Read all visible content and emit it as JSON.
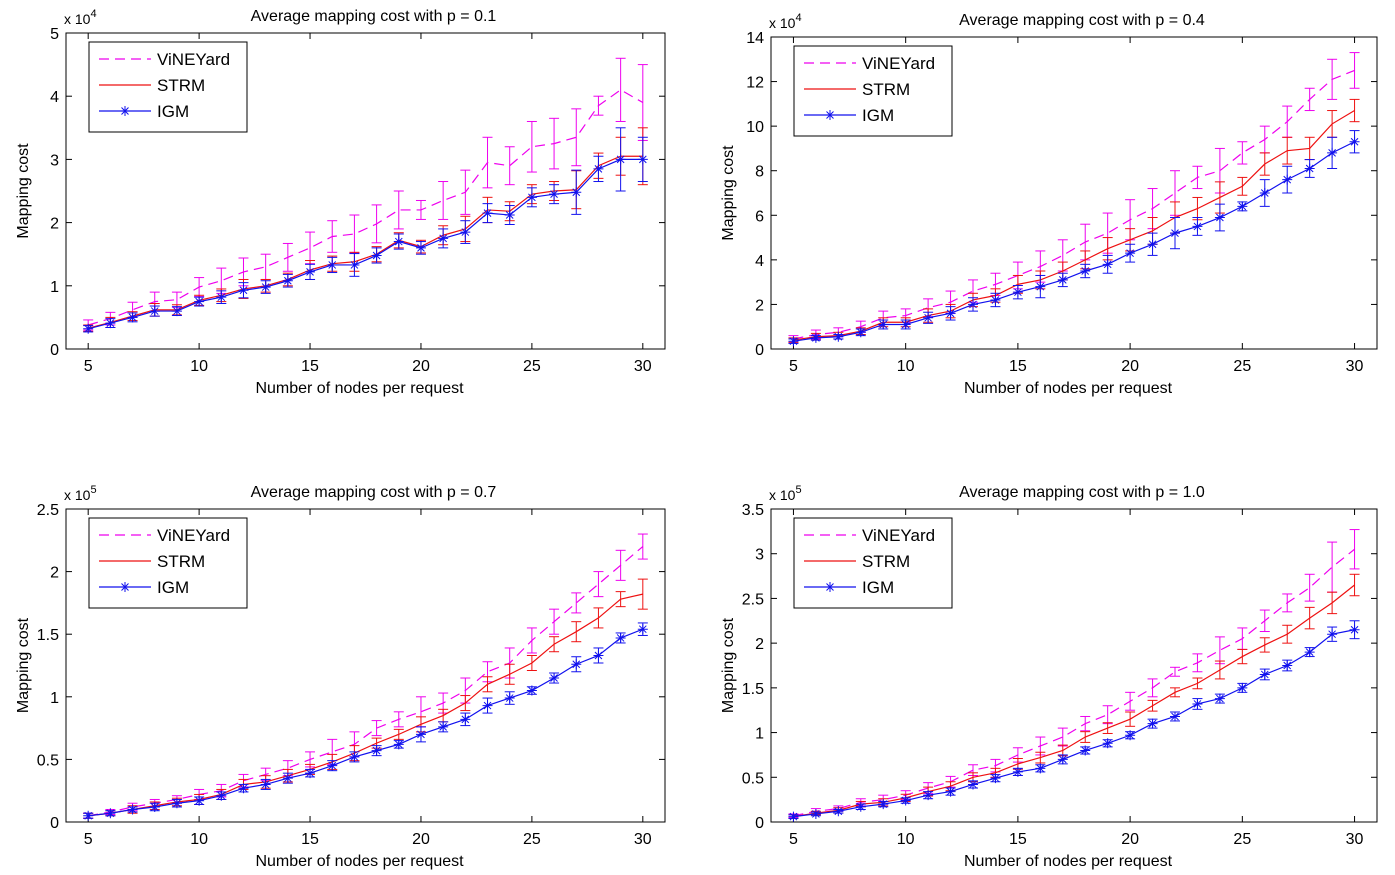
{
  "chart_data": [
    {
      "type": "line",
      "title": "Average mapping cost with p = 0.1",
      "xlabel": "Number of nodes per request",
      "ylabel": "Mapping cost",
      "exponent_label": "x 10",
      "exponent_power": "4",
      "x": [
        5,
        6,
        7,
        8,
        9,
        10,
        11,
        12,
        13,
        14,
        15,
        16,
        17,
        18,
        19,
        20,
        21,
        22,
        23,
        24,
        25,
        26,
        27,
        28,
        29,
        30
      ],
      "xlim": [
        4,
        31
      ],
      "ylim": [
        0,
        5
      ],
      "xticks": [
        5,
        10,
        15,
        20,
        25,
        30
      ],
      "yticks": [
        0,
        1,
        2,
        3,
        4,
        5
      ],
      "legend_position": "top-left",
      "series": [
        {
          "name": "ViNEYard",
          "color": "#ee00ee",
          "style": "dashed",
          "values": [
            0.38,
            0.48,
            0.62,
            0.75,
            0.78,
            0.98,
            1.08,
            1.22,
            1.3,
            1.45,
            1.6,
            1.78,
            1.82,
            1.98,
            2.2,
            2.2,
            2.35,
            2.48,
            2.95,
            2.9,
            3.2,
            3.25,
            3.35,
            3.85,
            4.1,
            3.9
          ],
          "err": [
            0.08,
            0.1,
            0.12,
            0.15,
            0.12,
            0.15,
            0.2,
            0.22,
            0.2,
            0.22,
            0.25,
            0.25,
            0.3,
            0.3,
            0.3,
            0.15,
            0.3,
            0.35,
            0.4,
            0.3,
            0.4,
            0.4,
            0.45,
            0.15,
            0.5,
            0.6
          ]
        },
        {
          "name": "STRM",
          "color": "#ee1111",
          "style": "solid",
          "values": [
            0.33,
            0.42,
            0.52,
            0.62,
            0.62,
            0.77,
            0.85,
            0.95,
            1.0,
            1.1,
            1.25,
            1.35,
            1.38,
            1.5,
            1.72,
            1.62,
            1.8,
            1.9,
            2.2,
            2.18,
            2.45,
            2.5,
            2.52,
            2.9,
            3.05,
            3.05
          ],
          "err": [
            0.05,
            0.08,
            0.07,
            0.1,
            0.08,
            0.08,
            0.1,
            0.15,
            0.1,
            0.1,
            0.15,
            0.12,
            0.15,
            0.12,
            0.12,
            0.1,
            0.15,
            0.2,
            0.2,
            0.15,
            0.15,
            0.15,
            0.3,
            0.2,
            0.3,
            0.45
          ]
        },
        {
          "name": "IGM",
          "color": "#1111ee",
          "style": "solid-star",
          "values": [
            0.32,
            0.41,
            0.5,
            0.6,
            0.6,
            0.75,
            0.82,
            0.93,
            0.98,
            1.08,
            1.22,
            1.33,
            1.33,
            1.48,
            1.7,
            1.6,
            1.75,
            1.85,
            2.15,
            2.12,
            2.4,
            2.45,
            2.48,
            2.85,
            3.0,
            3.0
          ],
          "err": [
            0.05,
            0.07,
            0.07,
            0.08,
            0.07,
            0.07,
            0.1,
            0.12,
            0.1,
            0.1,
            0.12,
            0.12,
            0.18,
            0.12,
            0.12,
            0.1,
            0.15,
            0.18,
            0.15,
            0.15,
            0.15,
            0.15,
            0.35,
            0.2,
            0.5,
            0.35
          ]
        }
      ]
    },
    {
      "type": "line",
      "title": "Average mapping cost with p = 0.4",
      "xlabel": "Number of nodes per request",
      "ylabel": "Mapping cost",
      "exponent_label": "x 10",
      "exponent_power": "4",
      "x": [
        5,
        6,
        7,
        8,
        9,
        10,
        11,
        12,
        13,
        14,
        15,
        16,
        17,
        18,
        19,
        20,
        21,
        22,
        23,
        24,
        25,
        26,
        27,
        28,
        29,
        30
      ],
      "xlim": [
        4,
        31
      ],
      "ylim": [
        0,
        14
      ],
      "xticks": [
        5,
        10,
        15,
        20,
        25,
        30
      ],
      "yticks": [
        0,
        2,
        4,
        6,
        8,
        10,
        12,
        14
      ],
      "legend_position": "top-left",
      "series": [
        {
          "name": "ViNEYard",
          "color": "#ee00ee",
          "style": "dashed",
          "values": [
            0.45,
            0.65,
            0.75,
            1.0,
            1.4,
            1.5,
            1.85,
            2.1,
            2.6,
            2.9,
            3.3,
            3.7,
            4.2,
            4.8,
            5.2,
            5.8,
            6.3,
            7.0,
            7.7,
            8.0,
            8.8,
            9.4,
            10.2,
            11.2,
            12.1,
            12.5
          ],
          "err": [
            0.15,
            0.2,
            0.2,
            0.25,
            0.3,
            0.3,
            0.4,
            0.5,
            0.5,
            0.5,
            0.6,
            0.7,
            0.7,
            0.8,
            0.9,
            0.9,
            0.9,
            1.0,
            0.5,
            1.0,
            0.5,
            0.6,
            0.7,
            0.5,
            0.9,
            0.8
          ]
        },
        {
          "name": "STRM",
          "color": "#ee1111",
          "style": "solid",
          "values": [
            0.4,
            0.55,
            0.6,
            0.8,
            1.2,
            1.2,
            1.5,
            1.7,
            2.2,
            2.4,
            2.9,
            3.1,
            3.5,
            4.0,
            4.5,
            4.9,
            5.3,
            5.9,
            6.3,
            6.8,
            7.3,
            8.3,
            8.9,
            9.0,
            10.1,
            10.7
          ],
          "err": [
            0.1,
            0.15,
            0.15,
            0.15,
            0.2,
            0.2,
            0.3,
            0.3,
            0.3,
            0.3,
            0.4,
            0.4,
            0.4,
            0.4,
            0.5,
            0.5,
            0.6,
            0.7,
            0.5,
            0.7,
            0.4,
            0.5,
            0.6,
            0.5,
            0.6,
            0.5
          ]
        },
        {
          "name": "IGM",
          "color": "#1111ee",
          "style": "solid-star",
          "values": [
            0.35,
            0.5,
            0.55,
            0.75,
            1.1,
            1.1,
            1.4,
            1.6,
            2.0,
            2.2,
            2.55,
            2.8,
            3.1,
            3.5,
            3.8,
            4.3,
            4.7,
            5.2,
            5.5,
            5.9,
            6.4,
            7.0,
            7.6,
            8.1,
            8.8,
            9.3
          ],
          "err": [
            0.1,
            0.1,
            0.1,
            0.15,
            0.2,
            0.2,
            0.25,
            0.3,
            0.3,
            0.3,
            0.3,
            0.5,
            0.3,
            0.3,
            0.4,
            0.4,
            0.5,
            0.7,
            0.4,
            0.6,
            0.2,
            0.6,
            0.6,
            0.4,
            0.7,
            0.5
          ]
        }
      ]
    },
    {
      "type": "line",
      "title": "Average mapping cost with p = 0.7",
      "xlabel": "Number of nodes per request",
      "ylabel": "Mapping cost",
      "exponent_label": "x 10",
      "exponent_power": "5",
      "x": [
        5,
        6,
        7,
        8,
        9,
        10,
        11,
        12,
        13,
        14,
        15,
        16,
        17,
        18,
        19,
        20,
        21,
        22,
        23,
        24,
        25,
        26,
        27,
        28,
        29,
        30
      ],
      "xlim": [
        4,
        31
      ],
      "ylim": [
        0,
        2.5
      ],
      "xticks": [
        5,
        10,
        15,
        20,
        25,
        30
      ],
      "yticks": [
        0,
        0.5,
        1,
        1.5,
        2,
        2.5
      ],
      "legend_position": "top-left",
      "series": [
        {
          "name": "ViNEYard",
          "color": "#ee00ee",
          "style": "dashed",
          "values": [
            0.05,
            0.08,
            0.12,
            0.15,
            0.18,
            0.22,
            0.25,
            0.33,
            0.38,
            0.43,
            0.5,
            0.56,
            0.62,
            0.75,
            0.82,
            0.88,
            0.95,
            1.05,
            1.2,
            1.27,
            1.45,
            1.6,
            1.75,
            1.9,
            2.05,
            2.2
          ],
          "err": [
            0.02,
            0.02,
            0.03,
            0.03,
            0.03,
            0.04,
            0.05,
            0.05,
            0.05,
            0.06,
            0.06,
            0.1,
            0.1,
            0.06,
            0.06,
            0.12,
            0.08,
            0.1,
            0.08,
            0.12,
            0.1,
            0.1,
            0.08,
            0.1,
            0.12,
            0.1
          ]
        },
        {
          "name": "STRM",
          "color": "#ee1111",
          "style": "solid",
          "values": [
            0.05,
            0.07,
            0.1,
            0.13,
            0.16,
            0.18,
            0.22,
            0.3,
            0.32,
            0.37,
            0.42,
            0.48,
            0.55,
            0.63,
            0.7,
            0.78,
            0.85,
            0.95,
            1.1,
            1.18,
            1.27,
            1.42,
            1.52,
            1.63,
            1.78,
            1.82
          ],
          "err": [
            0.02,
            0.02,
            0.03,
            0.03,
            0.03,
            0.04,
            0.04,
            0.04,
            0.05,
            0.05,
            0.04,
            0.06,
            0.06,
            0.04,
            0.04,
            0.06,
            0.05,
            0.06,
            0.06,
            0.08,
            0.06,
            0.06,
            0.08,
            0.08,
            0.06,
            0.12
          ]
        },
        {
          "name": "IGM",
          "color": "#1111ee",
          "style": "solid-star",
          "values": [
            0.05,
            0.07,
            0.1,
            0.12,
            0.15,
            0.17,
            0.21,
            0.27,
            0.3,
            0.35,
            0.39,
            0.45,
            0.52,
            0.57,
            0.62,
            0.7,
            0.76,
            0.82,
            0.93,
            0.99,
            1.05,
            1.15,
            1.26,
            1.33,
            1.47,
            1.54
          ],
          "err": [
            0.02,
            0.02,
            0.02,
            0.03,
            0.03,
            0.03,
            0.03,
            0.03,
            0.04,
            0.04,
            0.03,
            0.04,
            0.04,
            0.04,
            0.03,
            0.06,
            0.04,
            0.05,
            0.06,
            0.05,
            0.03,
            0.04,
            0.06,
            0.06,
            0.04,
            0.05
          ]
        }
      ]
    },
    {
      "type": "line",
      "title": "Average mapping cost with p = 1.0",
      "xlabel": "Number of nodes per request",
      "ylabel": "Mapping cost",
      "exponent_label": "x 10",
      "exponent_power": "5",
      "x": [
        5,
        6,
        7,
        8,
        9,
        10,
        11,
        12,
        13,
        14,
        15,
        16,
        17,
        18,
        19,
        20,
        21,
        22,
        23,
        24,
        25,
        26,
        27,
        28,
        29,
        30
      ],
      "xlim": [
        4,
        31
      ],
      "ylim": [
        0,
        3.5
      ],
      "xticks": [
        5,
        10,
        15,
        20,
        25,
        30
      ],
      "yticks": [
        0,
        0.5,
        1,
        1.5,
        2,
        2.5,
        3,
        3.5
      ],
      "legend_position": "top-left",
      "series": [
        {
          "name": "ViNEYard",
          "color": "#ee00ee",
          "style": "dashed",
          "values": [
            0.07,
            0.12,
            0.15,
            0.22,
            0.25,
            0.3,
            0.38,
            0.45,
            0.58,
            0.63,
            0.75,
            0.85,
            0.95,
            1.1,
            1.2,
            1.35,
            1.5,
            1.68,
            1.78,
            1.92,
            2.05,
            2.25,
            2.45,
            2.62,
            2.85,
            3.05
          ],
          "err": [
            0.02,
            0.03,
            0.03,
            0.04,
            0.05,
            0.05,
            0.06,
            0.06,
            0.06,
            0.07,
            0.08,
            0.1,
            0.1,
            0.08,
            0.1,
            0.1,
            0.1,
            0.05,
            0.1,
            0.15,
            0.12,
            0.12,
            0.1,
            0.15,
            0.28,
            0.22
          ]
        },
        {
          "name": "STRM",
          "color": "#ee1111",
          "style": "solid",
          "values": [
            0.06,
            0.1,
            0.13,
            0.2,
            0.22,
            0.27,
            0.34,
            0.4,
            0.5,
            0.55,
            0.65,
            0.72,
            0.8,
            0.95,
            1.05,
            1.15,
            1.3,
            1.45,
            1.55,
            1.7,
            1.85,
            1.98,
            2.1,
            2.28,
            2.45,
            2.65
          ],
          "err": [
            0.02,
            0.02,
            0.03,
            0.03,
            0.04,
            0.04,
            0.05,
            0.05,
            0.05,
            0.05,
            0.06,
            0.06,
            0.06,
            0.06,
            0.06,
            0.08,
            0.06,
            0.05,
            0.06,
            0.1,
            0.08,
            0.08,
            0.1,
            0.12,
            0.12,
            0.12
          ]
        },
        {
          "name": "IGM",
          "color": "#1111ee",
          "style": "solid-star",
          "values": [
            0.06,
            0.09,
            0.12,
            0.17,
            0.2,
            0.24,
            0.3,
            0.34,
            0.42,
            0.49,
            0.56,
            0.6,
            0.7,
            0.8,
            0.88,
            0.97,
            1.1,
            1.18,
            1.32,
            1.38,
            1.5,
            1.65,
            1.75,
            1.9,
            2.1,
            2.15
          ],
          "err": [
            0.02,
            0.02,
            0.02,
            0.03,
            0.03,
            0.03,
            0.04,
            0.04,
            0.04,
            0.04,
            0.04,
            0.04,
            0.05,
            0.04,
            0.04,
            0.04,
            0.05,
            0.05,
            0.06,
            0.05,
            0.05,
            0.06,
            0.06,
            0.05,
            0.08,
            0.1
          ]
        }
      ]
    }
  ]
}
